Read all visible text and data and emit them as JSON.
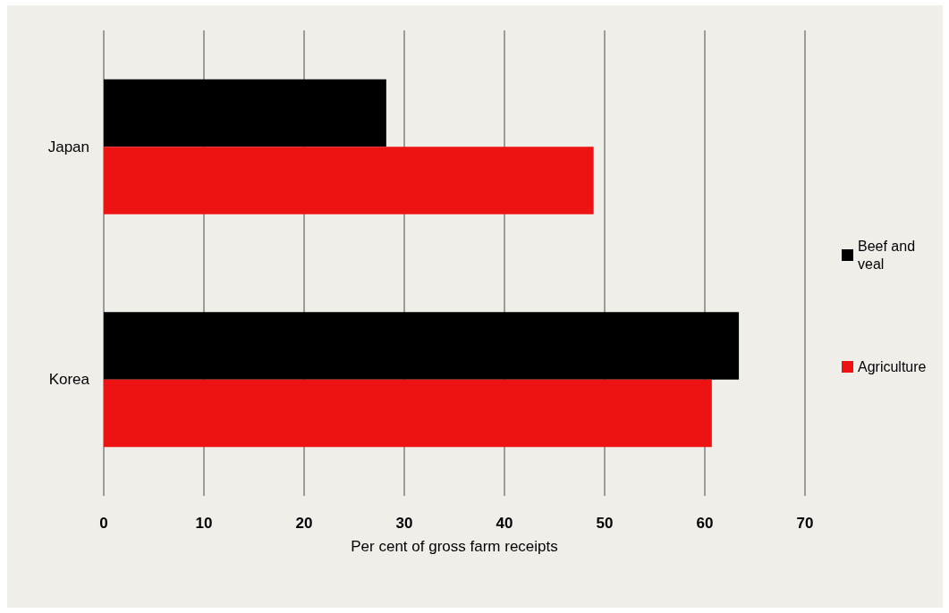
{
  "chart_data": {
    "type": "bar",
    "orientation": "horizontal",
    "xlabel": "Per cent of gross farm receipts",
    "categories": [
      "Japan",
      "Korea"
    ],
    "series": [
      {
        "name": "Beef and veal",
        "color": "#000000",
        "values": [
          28.2,
          63.4
        ]
      },
      {
        "name": "Agriculture",
        "color": "#ee1313",
        "values": [
          48.9,
          60.7
        ]
      }
    ],
    "xlim": [
      0,
      70
    ],
    "xticks": [
      0,
      10,
      20,
      30,
      40,
      50,
      60,
      70
    ],
    "grid": "x",
    "legend": "right"
  }
}
